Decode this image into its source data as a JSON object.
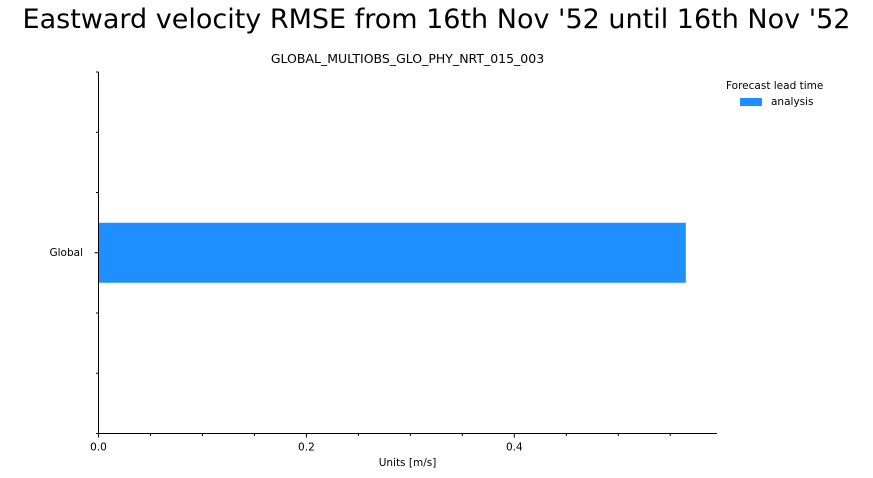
{
  "chart_data": {
    "type": "bar",
    "orientation": "horizontal",
    "title": "Eastward velocity RMSE from 16th Nov '52 until 16th Nov '52",
    "subtitle": "GLOBAL_MULTIOBS_GLO_PHY_NRT_015_003",
    "categories": [
      "Global"
    ],
    "series": [
      {
        "name": "analysis",
        "values": [
          0.565
        ],
        "color": "#1f8fff"
      }
    ],
    "xlabel": "Units [m/s]",
    "ylabel": "",
    "xlim": [
      0,
      0.595
    ],
    "xticks": [
      "0.0",
      "0.2",
      "0.4"
    ],
    "xtick_values": [
      0.0,
      0.2,
      0.4
    ],
    "xminor_step": 0.05,
    "legend": {
      "title": "Forecast lead time",
      "placement": "upper-right outside"
    },
    "grid": false
  }
}
